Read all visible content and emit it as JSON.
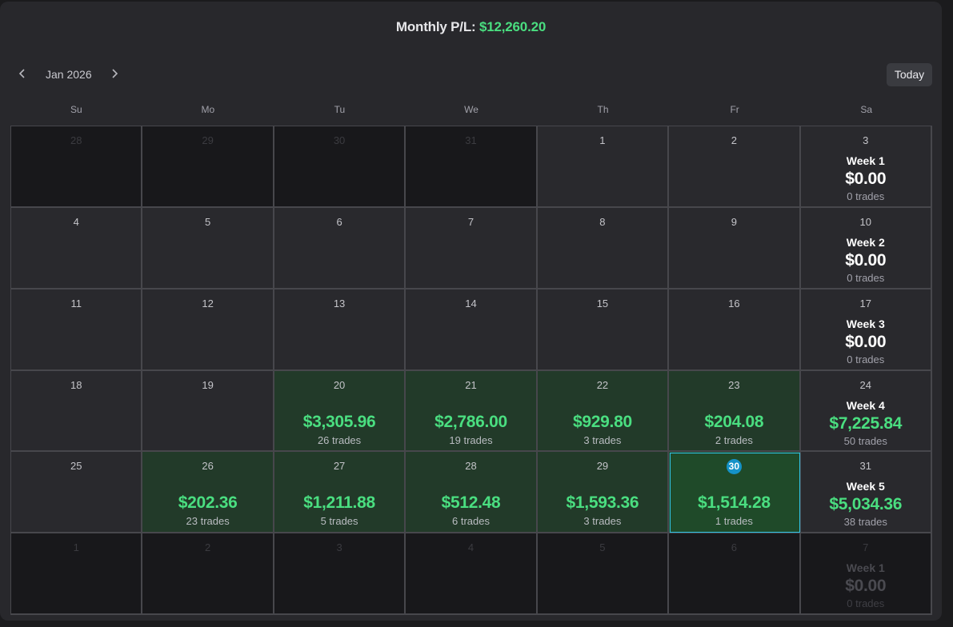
{
  "header": {
    "monthly_label": "Monthly P/L:",
    "monthly_value": "$12,260.20",
    "accent_color": "#4ade80"
  },
  "nav": {
    "prev_icon": "chevron-left-icon",
    "next_icon": "chevron-right-icon",
    "month": "Jan 2026",
    "today_label": "Today"
  },
  "weekdays": [
    "Su",
    "Mo",
    "Tu",
    "We",
    "Th",
    "Fr",
    "Sa"
  ],
  "weeks": [
    {
      "days": [
        {
          "num": "28",
          "state": "dim"
        },
        {
          "num": "29",
          "state": "dim"
        },
        {
          "num": "30",
          "state": "dim"
        },
        {
          "num": "31",
          "state": "dim"
        },
        {
          "num": "1",
          "state": "normal"
        },
        {
          "num": "2",
          "state": "normal"
        }
      ],
      "saturday": {
        "num": "3",
        "state": "normal",
        "week": "Week 1",
        "amount": "$0.00",
        "trades": "0 trades",
        "positive": false
      }
    },
    {
      "days": [
        {
          "num": "4",
          "state": "normal"
        },
        {
          "num": "5",
          "state": "normal"
        },
        {
          "num": "6",
          "state": "normal"
        },
        {
          "num": "7",
          "state": "normal"
        },
        {
          "num": "8",
          "state": "normal"
        },
        {
          "num": "9",
          "state": "normal"
        }
      ],
      "saturday": {
        "num": "10",
        "state": "normal",
        "week": "Week 2",
        "amount": "$0.00",
        "trades": "0 trades",
        "positive": false
      }
    },
    {
      "days": [
        {
          "num": "11",
          "state": "normal"
        },
        {
          "num": "12",
          "state": "normal"
        },
        {
          "num": "13",
          "state": "normal"
        },
        {
          "num": "14",
          "state": "normal"
        },
        {
          "num": "15",
          "state": "normal"
        },
        {
          "num": "16",
          "state": "normal"
        }
      ],
      "saturday": {
        "num": "17",
        "state": "normal",
        "week": "Week 3",
        "amount": "$0.00",
        "trades": "0 trades",
        "positive": false
      }
    },
    {
      "days": [
        {
          "num": "18",
          "state": "normal"
        },
        {
          "num": "19",
          "state": "normal"
        },
        {
          "num": "20",
          "state": "green",
          "pl": "$3,305.96",
          "trades": "26 trades"
        },
        {
          "num": "21",
          "state": "green",
          "pl": "$2,786.00",
          "trades": "19 trades"
        },
        {
          "num": "22",
          "state": "green",
          "pl": "$929.80",
          "trades": "3 trades"
        },
        {
          "num": "23",
          "state": "green",
          "pl": "$204.08",
          "trades": "2 trades"
        }
      ],
      "saturday": {
        "num": "24",
        "state": "normal",
        "week": "Week 4",
        "amount": "$7,225.84",
        "trades": "50 trades",
        "positive": true
      }
    },
    {
      "days": [
        {
          "num": "25",
          "state": "normal"
        },
        {
          "num": "26",
          "state": "green",
          "pl": "$202.36",
          "trades": "23 trades"
        },
        {
          "num": "27",
          "state": "green",
          "pl": "$1,211.88",
          "trades": "5 trades"
        },
        {
          "num": "28",
          "state": "green",
          "pl": "$512.48",
          "trades": "6 trades"
        },
        {
          "num": "29",
          "state": "green",
          "pl": "$1,593.36",
          "trades": "3 trades"
        },
        {
          "num": "30",
          "state": "today",
          "pl": "$1,514.28",
          "trades": "1 trades"
        }
      ],
      "saturday": {
        "num": "31",
        "state": "normal",
        "week": "Week 5",
        "amount": "$5,034.36",
        "trades": "38 trades",
        "positive": true
      }
    },
    {
      "days": [
        {
          "num": "1",
          "state": "dim"
        },
        {
          "num": "2",
          "state": "dim"
        },
        {
          "num": "3",
          "state": "dim"
        },
        {
          "num": "4",
          "state": "dim"
        },
        {
          "num": "5",
          "state": "dim"
        },
        {
          "num": "6",
          "state": "dim"
        }
      ],
      "saturday": {
        "num": "7",
        "state": "dim",
        "week": "Week 1",
        "amount": "$0.00",
        "trades": "0 trades",
        "positive": false
      }
    }
  ]
}
